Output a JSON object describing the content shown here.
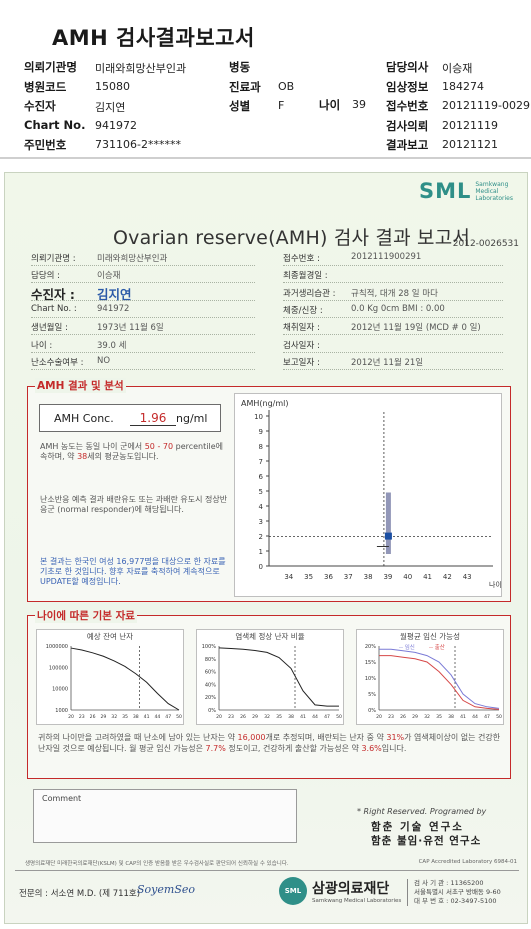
{
  "label": {
    "title": "AMH 검사결과보고서",
    "left": [
      {
        "k": "의뢰기관명",
        "v": "미래와희망산부인과"
      },
      {
        "k": "병원코드",
        "v": "15080"
      },
      {
        "k": "수진자",
        "v": "김지연"
      },
      {
        "k": "Chart No.",
        "v": "941972"
      },
      {
        "k": "주민번호",
        "v": "731106-2******"
      }
    ],
    "mid": [
      {
        "k": "병동",
        "v": ""
      },
      {
        "k": "진료과",
        "v": "OB"
      },
      {
        "k": "성별",
        "v": "F"
      }
    ],
    "age_k": "나이",
    "age_v": "39",
    "right": [
      {
        "k": "담당의사",
        "v": "이승재"
      },
      {
        "k": "임상정보",
        "v": "184274"
      },
      {
        "k": "접수번호",
        "v": "20121119-0029"
      },
      {
        "k": "검사의뢰",
        "v": "20121119"
      },
      {
        "k": "결과보고",
        "v": "20121121"
      }
    ]
  },
  "report": {
    "logo": "SML",
    "logo_sub1": "Samkwang",
    "logo_sub2": "Medical",
    "logo_sub3": "Laboratories",
    "title": "Ovarian reserve(AMH) 검사 결과 보고서",
    "number": "2012-0026531",
    "info_left": [
      {
        "k": "의뢰기관명 :",
        "v": "미래와희망산부인과"
      },
      {
        "k": "담당의 :",
        "v": "이승재"
      },
      {
        "k": "수진자 :",
        "v": "김지연"
      },
      {
        "k": "Chart No. :",
        "v": "941972"
      },
      {
        "k": "생년월일 :",
        "v": "1973년 11월 6일"
      },
      {
        "k": "나이 :",
        "v": "39.0 세"
      },
      {
        "k": "난소수술여부 :",
        "v": "NO"
      }
    ],
    "info_right": [
      {
        "k": "접수번호 :",
        "v": "2012111900291"
      },
      {
        "k": "최종월경일 :",
        "v": ""
      },
      {
        "k": "과거생리습관 :",
        "v": "규칙적, 대개   28 일 마다"
      },
      {
        "k": "체중/신장 :",
        "v": "0.0 Kg        0cm     BMI :     0.00"
      },
      {
        "k": "채취일자 :",
        "v": "2012년 11월 19일 (MCD #  0 일)"
      },
      {
        "k": "검사일자 :",
        "v": ""
      },
      {
        "k": "보고일자 :",
        "v": "2012년 11월 21일"
      }
    ]
  },
  "amh": {
    "section": "AMH 결과 및 분석",
    "conc_label": "AMH Conc.",
    "conc_value": "1.96",
    "conc_unit": "ng/ml",
    "p1_a": "AMH 농도는 동일 나이 군에서",
    "p1_range": "50 - 70",
    "p1_b": "percentile에 속하며, 약",
    "p1_age": "38",
    "p1_c": "세의 평균농도입니다.",
    "p2": "난소반응 예측 결과 배란유도 또는 과배란 유도시 정상반응군 (normal responder)에 해당됩니다.",
    "p3": "본 결과는 한국인 여성 16,977명을 대상으로 한 자료를 기초로 한 것입니다. 향후 자료를 축적하여 계속적으로 UPDATE할 예정입니다."
  },
  "chart_data": [
    {
      "type": "scatter",
      "title": "",
      "ylabel": "AMH(ng/ml)",
      "xlabel": "나이",
      "x_ticks": [
        "34",
        "35",
        "36",
        "37",
        "38",
        "39",
        "40",
        "41",
        "42",
        "43"
      ],
      "y_ticks": [
        "0",
        "1",
        "2",
        "3",
        "4",
        "5",
        "6",
        "7",
        "8",
        "9",
        "10"
      ],
      "xlim": [
        33,
        44
      ],
      "ylim": [
        0,
        10
      ],
      "reference_range_at_39": {
        "low": 0.8,
        "high": 4.9
      },
      "patient": {
        "age": 39,
        "amh": 1.96
      },
      "grid": false
    },
    {
      "type": "line",
      "title": "예상 잔여 난자",
      "x_ticks": [
        "20",
        "23",
        "26",
        "29",
        "32",
        "35",
        "38",
        "41",
        "44",
        "47",
        "50"
      ],
      "y_ticks": [
        "1000",
        "10000",
        "100000",
        "1000000"
      ],
      "y_scale": "log",
      "x": [
        20,
        23,
        26,
        29,
        32,
        35,
        38,
        41,
        44,
        47,
        50
      ],
      "values": [
        800000,
        650000,
        480000,
        330000,
        200000,
        110000,
        50000,
        20000,
        6000,
        2000,
        1000
      ],
      "marker_age": 39
    },
    {
      "type": "line",
      "title": "염색체 정상 난자 비율",
      "x_ticks": [
        "20",
        "23",
        "26",
        "29",
        "32",
        "35",
        "38",
        "41",
        "44",
        "47",
        "50"
      ],
      "y_ticks": [
        "0%",
        "20%",
        "40%",
        "60%",
        "80%",
        "100%"
      ],
      "x": [
        20,
        23,
        26,
        29,
        32,
        35,
        38,
        41,
        44,
        47,
        50
      ],
      "values": [
        97,
        96,
        95,
        93,
        90,
        82,
        65,
        30,
        8,
        6,
        6
      ],
      "marker_age": 39
    },
    {
      "type": "line",
      "title": "월평균 임신 가능성",
      "legend": [
        "임신",
        "출산"
      ],
      "x_ticks": [
        "20",
        "23",
        "26",
        "29",
        "32",
        "35",
        "38",
        "41",
        "44",
        "47",
        "50"
      ],
      "y_ticks": [
        "0%",
        "5%",
        "10%",
        "15%",
        "20%"
      ],
      "x": [
        20,
        23,
        26,
        29,
        32,
        35,
        38,
        41,
        44,
        47,
        50
      ],
      "series": [
        {
          "name": "임신",
          "values": [
            19,
            19,
            18.5,
            18,
            17,
            15,
            11,
            5,
            2,
            1,
            0.5
          ]
        },
        {
          "name": "출산",
          "values": [
            17,
            17,
            16.5,
            16,
            15,
            12,
            8,
            3,
            1,
            0.5,
            0.2
          ]
        }
      ],
      "colors": {
        "임신": "#7a7ad6",
        "출산": "#d64848"
      },
      "marker_age": 39
    }
  ],
  "age": {
    "section": "나이에 따른 기본 자료",
    "p_a": "귀하의 나이만을 고려하였을 때 난소에 남아 있는 난자는 약",
    "p_n1": "16,000",
    "p_b": "개로 추정되며, 배란되는 난자 중 약",
    "p_n2": "31%",
    "p_c": "가 염색체이상이 없는 건강한 난자일 것으로 예상됩니다. 월 평균 임신 가능성은",
    "p_n3": "7.7%",
    "p_d": "정도이고, 건강하게 출산할 가능성은 약",
    "p_n4": "3.6%",
    "p_e": "입니다."
  },
  "footer": {
    "comment": "Comment",
    "rights": "* Right Reserved. Programed by",
    "dev1": "함춘 기술 연구소",
    "dev2": "함춘 불임·유전 연구소",
    "note": "생명의료재단 미래한국의료재단(KSLM) 및 CAP의 인증 받음을 받은 우수검사실로 판단되어 신뢰하실 수 있습니다.",
    "cap": "CAP  Accredited  Laboratory  6984-01",
    "doctor": "전문의 : 서소연 M.D. (제 711호)",
    "signature": "SoyemSeo",
    "fnd_circle": "SML",
    "fnd_name": "삼광의료재단",
    "fnd_eng": "Samkwang Medical Laboratories",
    "contact1": "검 사 기 관 : 11365200",
    "contact2": "서울특별시 서초구 방배동 9-60",
    "contact3": "대 부 번 호 : 02-3497-5100"
  }
}
